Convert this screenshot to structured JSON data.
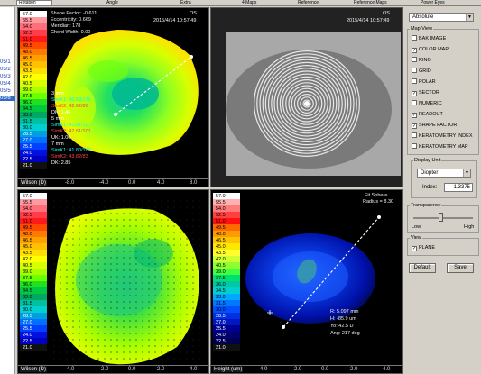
{
  "toolbar": {
    "field1": "Rotation",
    "text2": "Angle",
    "text3": "Extra",
    "text4": "4 Maps",
    "text5": "Reference",
    "text6": "Reference Maps",
    "text7": "Power Eyes"
  },
  "left_list": [
    "05/1",
    "05/2",
    "05/3",
    "05/4",
    "05/5",
    "05/6"
  ],
  "panels": {
    "tl": {
      "lines": [
        "Shape Factor: -0.611",
        "Eccentricity: 0.669",
        "Meridian: 178",
        "Chord Width: 0.00"
      ],
      "eye": "OS",
      "date": "2015/4/14 10:57:49",
      "readout": [
        "3 mm",
        "SimK1: 46.50/170",
        "SimK2: 42.62/80",
        "DK: 1.45",
        "5 mm",
        "SimK1: 41.07/11",
        "SimK2: 42.61/101",
        "UK: 1.00",
        "7 mm",
        "SimK1: 41.80/163",
        "SimK2: 43.82/83",
        "DK: 2.85"
      ],
      "scale_title": "Wilson (D)",
      "axis": [
        "-8.0",
        "-4.0",
        "0.0",
        "4.0",
        "8.0"
      ]
    },
    "tr": {
      "eye": "OS",
      "date": "2015/4/14 10:57:49"
    },
    "bl": {
      "scale_title": "Wilson (D)",
      "axis": [
        "-4.0",
        "-2.0",
        "0.0",
        "2.0",
        "4.0"
      ]
    },
    "br": {
      "title1": "Fit Sphere",
      "title2": "Radius = 8.30",
      "readout": [
        "R: 5.097 mm",
        "H: -85.9 um",
        "Yo: 42.5 D",
        "Ang: 217 deg"
      ],
      "scale_title": "Height (um)",
      "axis": [
        "-4.0",
        "-2.0",
        "0.0",
        "2.0",
        "4.0"
      ]
    }
  },
  "scale_values": [
    "57.0",
    "55.5",
    "54.0",
    "52.5",
    "51.0",
    "49.5",
    "48.0",
    "46.5",
    "45.0",
    "43.5",
    "42.0",
    "40.5",
    "39.0",
    "37.5",
    "36.0",
    "34.5",
    "33.0",
    "31.5",
    "30.0",
    "28.5",
    "27.0",
    "25.5",
    "24.0",
    "22.5",
    "21.0"
  ],
  "scale_colors": [
    "#ffffff",
    "#ff9aa0",
    "#ff6e79",
    "#ff3c4a",
    "#ff1a1a",
    "#ff4a00",
    "#ff7a00",
    "#ffa000",
    "#ffc000",
    "#ffe000",
    "#ffff00",
    "#d8ff00",
    "#a8ff00",
    "#6cff00",
    "#20e020",
    "#00c840",
    "#00a860",
    "#00c0a0",
    "#00d0d0",
    "#00a0e0",
    "#0070ff",
    "#0040ff",
    "#0010e0",
    "#0000c0",
    "#101010"
  ],
  "height_colors": [
    "#ffffff",
    "#ffb0b0",
    "#ff7a7a",
    "#ff4040",
    "#ff1010",
    "#ff6a00",
    "#ff9a00",
    "#ffc400",
    "#ffe800",
    "#ffff30",
    "#d0ff30",
    "#90ff30",
    "#40ff40",
    "#00e070",
    "#00c8a0",
    "#00d0d0",
    "#00a8ff",
    "#0078ff",
    "#0050ff",
    "#0030e0",
    "#0018c0",
    "#000090",
    "#000070",
    "#000050",
    "#101010"
  ],
  "control": {
    "display_select": "Absolute",
    "map_view_title": "Map View",
    "map_view_items": [
      {
        "label": "BAK IMAGE",
        "checked": false
      },
      {
        "label": "COLOR MAP",
        "checked": true
      },
      {
        "label": "RING",
        "checked": false
      },
      {
        "label": "GRID",
        "checked": false
      },
      {
        "label": "POLAR",
        "checked": false
      },
      {
        "label": "SECTOR",
        "checked": true
      },
      {
        "label": "NUMERIC",
        "checked": false
      },
      {
        "label": "READOUT",
        "checked": true
      },
      {
        "label": "SHAPE FACTOR",
        "checked": true
      },
      {
        "label": "KERATOMETRY INDEX",
        "checked": false
      },
      {
        "label": "KERATOMETRY MAP",
        "checked": false
      }
    ],
    "display_unit_title": "Display Unit",
    "display_unit_value": "Diopter",
    "index_label": "Index:",
    "index_value": "1.3375",
    "transparency_title": "Transparency",
    "transparency_low": "Low",
    "transparency_high": "High",
    "transparency_level": 0.45,
    "view_title": "View",
    "plane_label": "PLANE",
    "plane_checked": true,
    "default_label": "Default",
    "save_label": "Save"
  }
}
